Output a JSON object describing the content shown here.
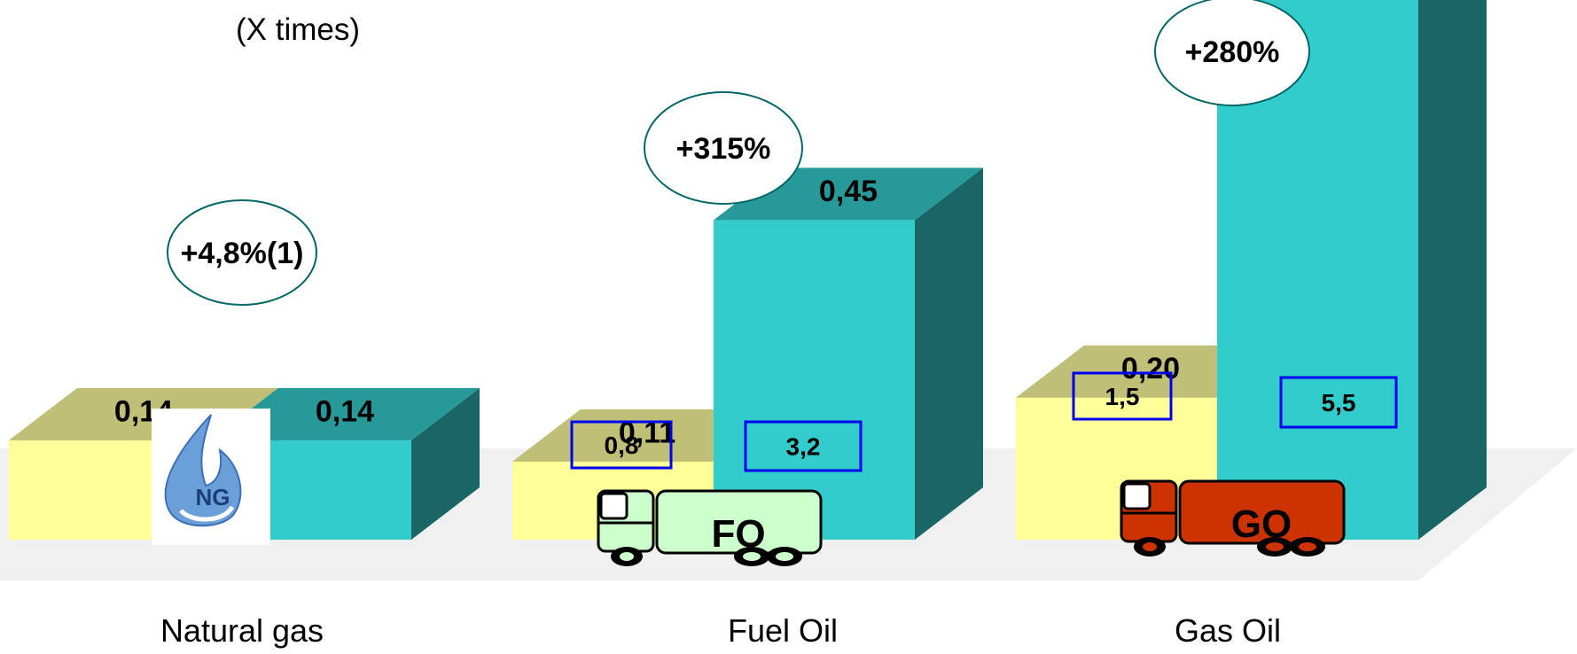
{
  "subtitle": "(X times)",
  "chart_data": {
    "type": "bar",
    "categories": [
      "Natural gas",
      "Fuel Oil",
      "Gas Oil"
    ],
    "series": [
      {
        "values": [
          0.14,
          0.11,
          0.2
        ],
        "value_labels": [
          "0,14",
          "0,11",
          "0,20"
        ]
      },
      {
        "values": [
          0.14,
          0.45,
          0.76
        ],
        "value_labels": [
          "0,14",
          "0,45",
          ""
        ]
      }
    ],
    "changes": [
      "+4,8%(1)",
      "+315%",
      "+280%"
    ],
    "multipliers": [
      [
        "",
        ""
      ],
      [
        "0,8",
        "3,2"
      ],
      [
        "1,5",
        "5,5"
      ]
    ],
    "icons": [
      "ng-logo-icon",
      "tanker-truck-icon",
      "tanker-truck-icon"
    ],
    "truck_labels": [
      "",
      "FO",
      "GO"
    ],
    "ylim": [
      0,
      0.76
    ],
    "grid": false,
    "colors": {
      "series1_front": "#ffff99",
      "series1_top": "#bfbf77",
      "series2_front": "#33cccc",
      "series2_top": "#279999",
      "series2_side": "#1a6666",
      "floor": "#f0f0f0",
      "multiplier_border": "#0000ee",
      "fo_truck": "#ccffcc",
      "go_truck": "#cc3300"
    }
  }
}
